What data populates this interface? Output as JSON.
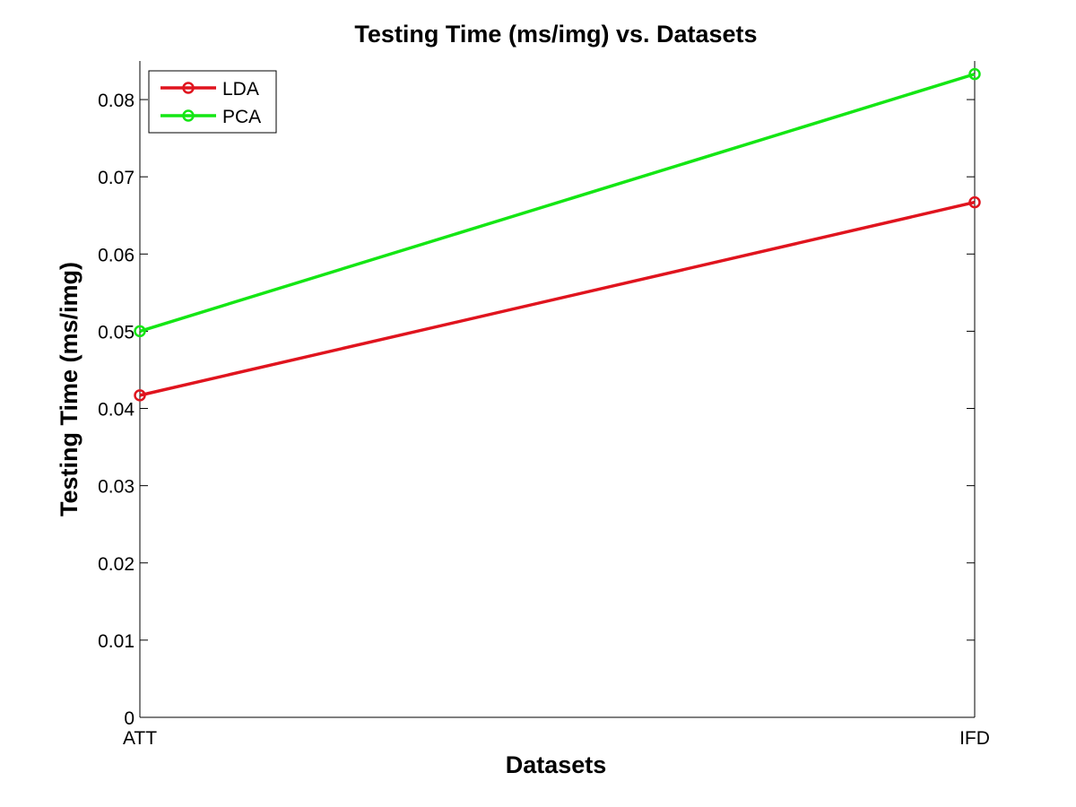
{
  "chart_data": {
    "type": "line",
    "title": "Testing Time (ms/img) vs. Datasets",
    "xlabel": "Datasets",
    "ylabel": "Testing Time (ms/img)",
    "categories": [
      "ATT",
      "IFD"
    ],
    "ylim": [
      0,
      0.085
    ],
    "yticks": [
      0,
      0.01,
      0.02,
      0.03,
      0.04,
      0.05,
      0.06,
      0.07,
      0.08
    ],
    "ytick_labels": [
      "0",
      "0.01",
      "0.02",
      "0.03",
      "0.04",
      "0.05",
      "0.06",
      "0.07",
      "0.08"
    ],
    "grid": false,
    "legend_position": "top-left",
    "series": [
      {
        "name": "LDA",
        "color": "#e0141e",
        "marker": "circle",
        "values": [
          0.0417,
          0.0667
        ]
      },
      {
        "name": "PCA",
        "color": "#14e614",
        "marker": "circle",
        "values": [
          0.05,
          0.0833
        ]
      }
    ]
  }
}
